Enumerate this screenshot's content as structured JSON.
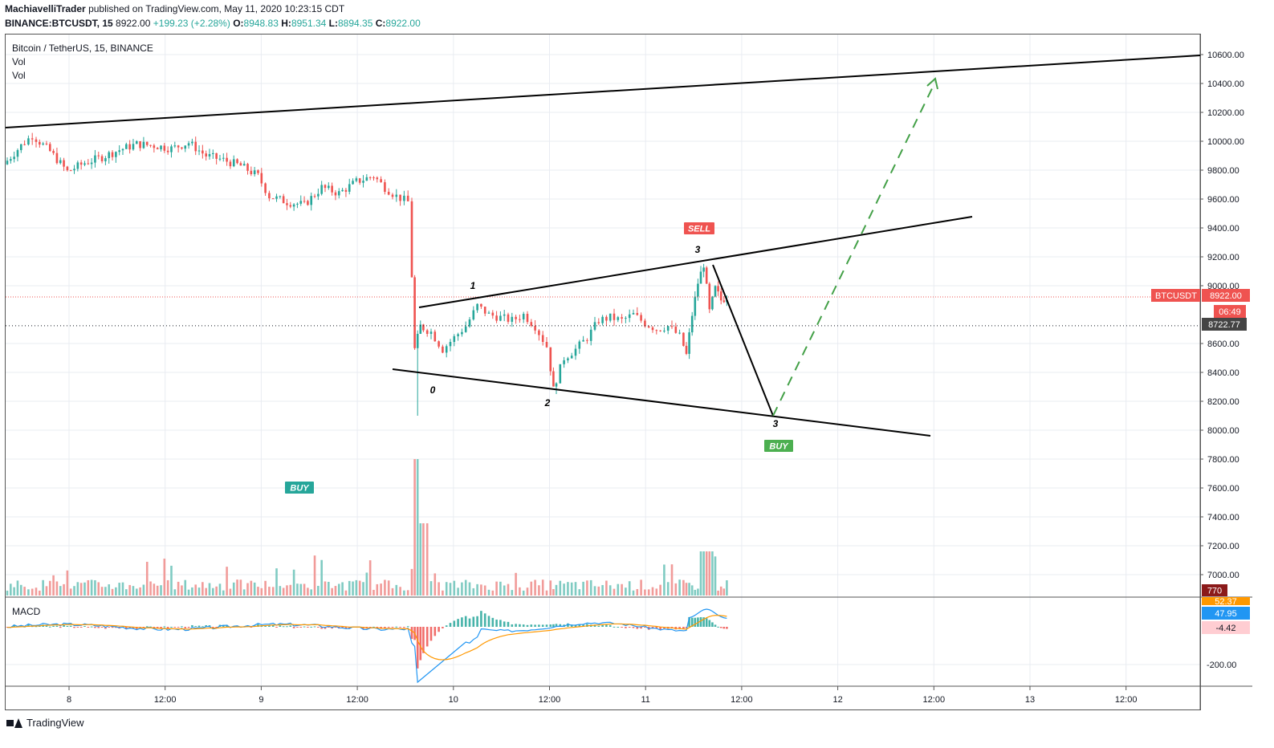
{
  "header": {
    "author": "MachiavelliTrader",
    "published_text": "published on TradingView.com, May 11, 2020 10:23:15 CDT",
    "symbol_line": "BINANCE:BTCUSDT, 15",
    "last": "8922.00",
    "change": "+199.23 (+2.28%)",
    "o_label": "O:",
    "o": "8948.83",
    "h_label": "H:",
    "h": "8951.34",
    "l_label": "L:",
    "l": "8894.35",
    "c_label": "C:",
    "c": "8922.00"
  },
  "legend": {
    "title": "Bitcoin / TetherUS, 15, BINANCE",
    "vol1": "Vol",
    "vol2": "Vol",
    "macd": "MACD"
  },
  "footer": {
    "brand": "TradingView"
  },
  "colors": {
    "up": "#26a69a",
    "down": "#ef5350",
    "grid": "#e9ecf2",
    "axis": "#555555",
    "price_line": "#ef5350",
    "macd": "#2196f3",
    "signal": "#ff9800",
    "buy": "#26a69a",
    "buy2": "#4caf50",
    "sell": "#ef5350",
    "projection": "#43a047"
  },
  "chart_data": {
    "type": "candlestick",
    "symbol": "BTCUSDT",
    "interval": "15",
    "x_ticks": [
      "8",
      "12:00",
      "9",
      "12:00",
      "10",
      "12:00",
      "11",
      "12:00",
      "12",
      "12:00",
      "13",
      "12:00"
    ],
    "y_ticks": [
      "10600.00",
      "10400.00",
      "10200.00",
      "10000.00",
      "9800.00",
      "9600.00",
      "9400.00",
      "9200.00",
      "9000.00",
      "8600.00",
      "8400.00",
      "8200.00",
      "8000.00",
      "7800.00",
      "7600.00",
      "7400.00",
      "7200.00",
      "7000.00"
    ],
    "ylim": [
      6840,
      10760
    ],
    "price_path": [
      {
        "t": 0,
        "p": 9840
      },
      {
        "t": 3,
        "p": 9970
      },
      {
        "t": 5,
        "p": 10040
      },
      {
        "t": 8,
        "p": 9930
      },
      {
        "t": 11,
        "p": 9790
      },
      {
        "t": 14,
        "p": 9850
      },
      {
        "t": 17,
        "p": 9890
      },
      {
        "t": 20,
        "p": 9940
      },
      {
        "t": 23,
        "p": 9980
      },
      {
        "t": 26,
        "p": 9970
      },
      {
        "t": 29,
        "p": 9950
      },
      {
        "t": 32,
        "p": 9990
      },
      {
        "t": 35,
        "p": 9900
      },
      {
        "t": 38,
        "p": 9870
      },
      {
        "t": 41,
        "p": 9830
      },
      {
        "t": 44,
        "p": 9760
      },
      {
        "t": 46,
        "p": 9620
      },
      {
        "t": 49,
        "p": 9580
      },
      {
        "t": 52,
        "p": 9560
      },
      {
        "t": 55,
        "p": 9680
      },
      {
        "t": 58,
        "p": 9640
      },
      {
        "t": 61,
        "p": 9720
      },
      {
        "t": 64,
        "p": 9760
      },
      {
        "t": 66,
        "p": 9680
      },
      {
        "t": 68,
        "p": 9620
      },
      {
        "t": 70,
        "p": 9580
      },
      {
        "t": 71,
        "p": 8560
      },
      {
        "t": 72,
        "p": 8720
      },
      {
        "t": 74,
        "p": 8680
      },
      {
        "t": 76,
        "p": 8560
      },
      {
        "t": 78,
        "p": 8640
      },
      {
        "t": 80,
        "p": 8720
      },
      {
        "t": 82,
        "p": 8860
      },
      {
        "t": 84,
        "p": 8800
      },
      {
        "t": 86,
        "p": 8780
      },
      {
        "t": 88,
        "p": 8760
      },
      {
        "t": 90,
        "p": 8800
      },
      {
        "t": 92,
        "p": 8720
      },
      {
        "t": 94,
        "p": 8580
      },
      {
        "t": 95,
        "p": 8280
      },
      {
        "t": 97,
        "p": 8500
      },
      {
        "t": 99,
        "p": 8560
      },
      {
        "t": 101,
        "p": 8640
      },
      {
        "t": 103,
        "p": 8760
      },
      {
        "t": 105,
        "p": 8780
      },
      {
        "t": 107,
        "p": 8760
      },
      {
        "t": 109,
        "p": 8800
      },
      {
        "t": 111,
        "p": 8740
      },
      {
        "t": 113,
        "p": 8700
      },
      {
        "t": 115,
        "p": 8720
      },
      {
        "t": 117,
        "p": 8650
      },
      {
        "t": 118,
        "p": 8520
      },
      {
        "t": 119,
        "p": 8800
      },
      {
        "t": 120,
        "p": 9020
      },
      {
        "t": 121,
        "p": 9150
      },
      {
        "t": 122,
        "p": 8820
      },
      {
        "t": 123,
        "p": 8980
      },
      {
        "t": 124,
        "p": 8900
      },
      {
        "t": 125,
        "p": 8922
      }
    ],
    "current_price": {
      "label": "BTCUSDT",
      "value": "8922.00",
      "countdown": "06:49"
    },
    "marker_price": "8722.77",
    "annotations": {
      "wave_labels": [
        "0",
        "1",
        "2",
        "3",
        "3"
      ],
      "signals": [
        "SELL",
        "BUY",
        "BUY"
      ]
    },
    "volume": {
      "label": "770"
    },
    "macd": {
      "label": "MACD",
      "values_labels": [
        "52.37",
        "47.95",
        "-4.42"
      ],
      "tick": "-200.00"
    }
  }
}
